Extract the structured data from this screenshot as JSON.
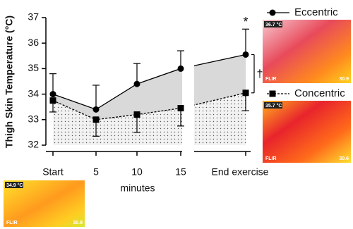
{
  "chart_data": {
    "type": "line",
    "y_label": "Thigh Skin Temperature (°C)",
    "x_label": "minutes",
    "categories": [
      "Start",
      "5",
      "10",
      "15",
      "End exercise"
    ],
    "series": [
      {
        "name": "Eccentric",
        "color": "#000000",
        "marker": "circle",
        "values": [
          34.0,
          33.4,
          34.4,
          35.0,
          35.55
        ],
        "errors": [
          0.8,
          0.95,
          0.8,
          0.7,
          1.0
        ]
      },
      {
        "name": "Concentric",
        "color": "#000000",
        "marker": "square",
        "values": [
          33.75,
          33.0,
          33.2,
          33.45,
          34.05
        ],
        "errors": [
          0.45,
          0.65,
          0.7,
          0.7,
          0.7
        ]
      }
    ],
    "ylim": [
      32,
      37
    ],
    "yticks": [
      32,
      33,
      34,
      35,
      36,
      37
    ],
    "annotations": [
      "*",
      "†"
    ],
    "images": [
      {
        "reading": "36.7 °C",
        "brand": "FLIR",
        "min": "30.9"
      },
      {
        "reading": "35.7 °C",
        "brand": "FLIR",
        "min": "30.6"
      },
      {
        "reading": "34.9 °C",
        "brand": "FLIR",
        "min": "30.8"
      }
    ]
  }
}
